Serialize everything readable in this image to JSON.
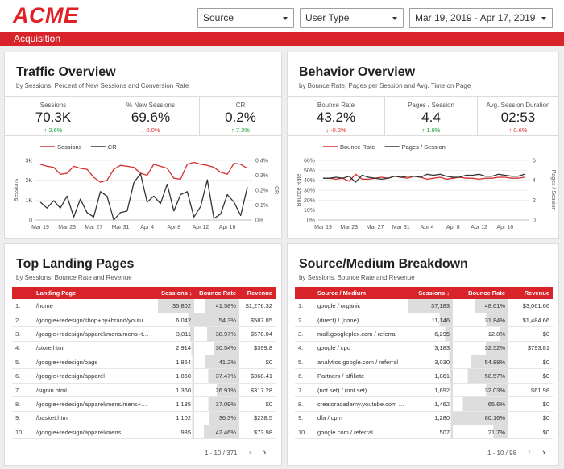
{
  "header": {
    "logo": "ACME",
    "filters": {
      "source": "Source",
      "user_type": "User Type",
      "date_range": "Mar 19, 2019 - Apr 17, 2019"
    }
  },
  "banner": "Acquisition",
  "colors": {
    "accent": "#d8232a",
    "series_red": "#d32f2f",
    "series_dark": "#333333",
    "bar_shade": "#dddddd"
  },
  "traffic": {
    "title": "Traffic Overview",
    "subtitle": "by Sessions, Percent of New Sessions and Conversion Rate",
    "kpis": [
      {
        "label": "Sessions",
        "value": "70.3K",
        "delta": "2.6%",
        "dir": "up"
      },
      {
        "label": "% New Sessions",
        "value": "69.6%",
        "delta": "0.0%",
        "dir": "down"
      },
      {
        "label": "CR",
        "value": "0.2%",
        "delta": "7.3%",
        "dir": "up"
      }
    ]
  },
  "behavior": {
    "title": "Behavior Overview",
    "subtitle": "by Bounce Rate, Pages per Session and Avg. Time on Page",
    "kpis": [
      {
        "label": "Bounce Rate",
        "value": "43.2%",
        "delta": "-0.2%",
        "dir": "down"
      },
      {
        "label": "Pages / Session",
        "value": "4.4",
        "delta": "1.9%",
        "dir": "up"
      },
      {
        "label": "Avg. Session Duration",
        "value": "02:53",
        "delta": "0.6%",
        "dir": "up"
      }
    ]
  },
  "chart_data": [
    {
      "type": "line",
      "x_labels": [
        "Mar 19",
        "Mar 23",
        "Mar 27",
        "Mar 31",
        "Apr 4",
        "Apr 8",
        "Apr 12",
        "Apr 16"
      ],
      "series": [
        {
          "name": "Sessions",
          "axis": "left",
          "values": [
            2800,
            2700,
            2650,
            2300,
            2350,
            2700,
            2600,
            2550,
            2150,
            1900,
            2000,
            2550,
            2750,
            2700,
            2650,
            2350,
            2250,
            2800,
            2700,
            2600,
            2100,
            2050,
            2800,
            2900,
            2800,
            2750,
            2650,
            2400,
            2300,
            2850,
            2800,
            2600
          ]
        },
        {
          "name": "CR",
          "axis": "right",
          "values": [
            0.12,
            0.08,
            0.13,
            0.08,
            0.16,
            0.02,
            0.14,
            0.05,
            0.02,
            0.19,
            0.16,
            0.0,
            0.05,
            0.06,
            0.25,
            0.31,
            0.12,
            0.16,
            0.11,
            0.24,
            0.06,
            0.17,
            0.19,
            0.02,
            0.09,
            0.27,
            0.01,
            0.04,
            0.17,
            0.12,
            0.03,
            0.22
          ]
        }
      ],
      "left_axis": {
        "label": "Sessions",
        "ticks": [
          "0",
          "1K",
          "2K",
          "3K"
        ],
        "range": [
          0,
          3000
        ]
      },
      "right_axis": {
        "label": "CR",
        "ticks": [
          "0%",
          "0.1%",
          "0.2%",
          "0.3%",
          "0.4%"
        ],
        "range": [
          0,
          0.4
        ]
      },
      "legend_position": "top-left"
    },
    {
      "type": "line",
      "x_labels": [
        "Mar 19",
        "Mar 23",
        "Mar 27",
        "Mar 31",
        "Apr 4",
        "Apr 8",
        "Apr 12",
        "Apr 16"
      ],
      "series": [
        {
          "name": "Bounce Rate",
          "axis": "left",
          "values": [
            42,
            42,
            41,
            42,
            39,
            46,
            41,
            41,
            42,
            43,
            42,
            44,
            43,
            42,
            44,
            43,
            41,
            42,
            43,
            41,
            42,
            43,
            42,
            42,
            41,
            42,
            42,
            43,
            43,
            42,
            42,
            43
          ]
        },
        {
          "name": "Pages / Session",
          "axis": "right",
          "values": [
            4.2,
            4.2,
            4.3,
            4.2,
            4.4,
            3.8,
            4.5,
            4.3,
            4.2,
            4.1,
            4.2,
            4.4,
            4.3,
            4.4,
            4.4,
            4.3,
            4.6,
            4.5,
            4.6,
            4.4,
            4.3,
            4.3,
            4.5,
            4.5,
            4.6,
            4.4,
            4.4,
            4.6,
            4.5,
            4.4,
            4.4,
            4.6
          ]
        }
      ],
      "left_axis": {
        "label": "Bounce Rate",
        "ticks": [
          "0%",
          "10%",
          "20%",
          "30%",
          "40%",
          "50%",
          "60%"
        ],
        "range": [
          0,
          60
        ]
      },
      "right_axis": {
        "label": "Pages / Session",
        "ticks": [
          "0",
          "2",
          "4",
          "6"
        ],
        "range": [
          0,
          6
        ]
      },
      "legend_position": "top-left"
    }
  ],
  "landing": {
    "title": "Top Landing Pages",
    "subtitle": "by Sessions, Bounce Rate and Revenue",
    "columns": [
      "Landing Page",
      "Sessions ↓",
      "Bounce Rate",
      "Revenue"
    ],
    "rows": [
      {
        "i": "1.",
        "name": "/home",
        "sessions": "35,802",
        "bounce": "41.58%",
        "revenue": "$1,276.32"
      },
      {
        "i": "2.",
        "name": "/google+redesign/shop+by+brand/youtu…",
        "sessions": "6,042",
        "bounce": "54.3%",
        "revenue": "$587.85"
      },
      {
        "i": "3.",
        "name": "/google+redesign/apparel/mens/mens+t…",
        "sessions": "3,811",
        "bounce": "38.97%",
        "revenue": "$578.04"
      },
      {
        "i": "4.",
        "name": "/store.html",
        "sessions": "2,914",
        "bounce": "30.54%",
        "revenue": "$399.8"
      },
      {
        "i": "5.",
        "name": "/google+redesign/bags",
        "sessions": "1,864",
        "bounce": "41.2%",
        "revenue": "$0"
      },
      {
        "i": "6.",
        "name": "/google+redesign/apparel",
        "sessions": "1,860",
        "bounce": "37.47%",
        "revenue": "$368.41"
      },
      {
        "i": "7.",
        "name": "/signin.html",
        "sessions": "1,360",
        "bounce": "26.91%",
        "revenue": "$317.28"
      },
      {
        "i": "8.",
        "name": "/google+redesign/apparel/mens/mens+…",
        "sessions": "1,135",
        "bounce": "37.09%",
        "revenue": "$0"
      },
      {
        "i": "9.",
        "name": "/basket.html",
        "sessions": "1,102",
        "bounce": "36.3%",
        "revenue": "$238.5"
      },
      {
        "i": "10.",
        "name": "/google+redesign/apparel/mens",
        "sessions": "935",
        "bounce": "42.46%",
        "revenue": "$73.98"
      }
    ],
    "pager": "1 - 10 / 371"
  },
  "source": {
    "title": "Source/Medium Breakdown",
    "subtitle": "by Sessions, Bounce Rate and Revenue",
    "columns": [
      "Source / Medium",
      "Sessions ↓",
      "Bounce Rate",
      "Revenue"
    ],
    "rows": [
      {
        "i": "1.",
        "name": "google / organic",
        "sessions": "37,183",
        "bounce": "48.61%",
        "revenue": "$3,061.66"
      },
      {
        "i": "2.",
        "name": "(direct) / (none)",
        "sessions": "11,146",
        "bounce": "31.84%",
        "revenue": "$1,484.66"
      },
      {
        "i": "3.",
        "name": "mall.googleplex.com / referral",
        "sessions": "6,295",
        "bounce": "12.8%",
        "revenue": "$0"
      },
      {
        "i": "4.",
        "name": "google / cpc",
        "sessions": "3,183",
        "bounce": "32.52%",
        "revenue": "$793.81"
      },
      {
        "i": "5.",
        "name": "analytics.google.com / referral",
        "sessions": "3,030",
        "bounce": "54.88%",
        "revenue": "$0"
      },
      {
        "i": "6.",
        "name": "Partners / affiliate",
        "sessions": "1,861",
        "bounce": "58.57%",
        "revenue": "$0"
      },
      {
        "i": "7.",
        "name": "(not set) / (not set)",
        "sessions": "1,692",
        "bounce": "32.03%",
        "revenue": "$61.98"
      },
      {
        "i": "8.",
        "name": "creatoracademy.youtube.com / re…",
        "sessions": "1,462",
        "bounce": "65.6%",
        "revenue": "$0"
      },
      {
        "i": "9.",
        "name": "dfa / cpm",
        "sessions": "1,280",
        "bounce": "80.16%",
        "revenue": "$0"
      },
      {
        "i": "10.",
        "name": "google.com / referral",
        "sessions": "507",
        "bounce": "21.7%",
        "revenue": "$0"
      }
    ],
    "pager": "1 - 10 / 98"
  }
}
